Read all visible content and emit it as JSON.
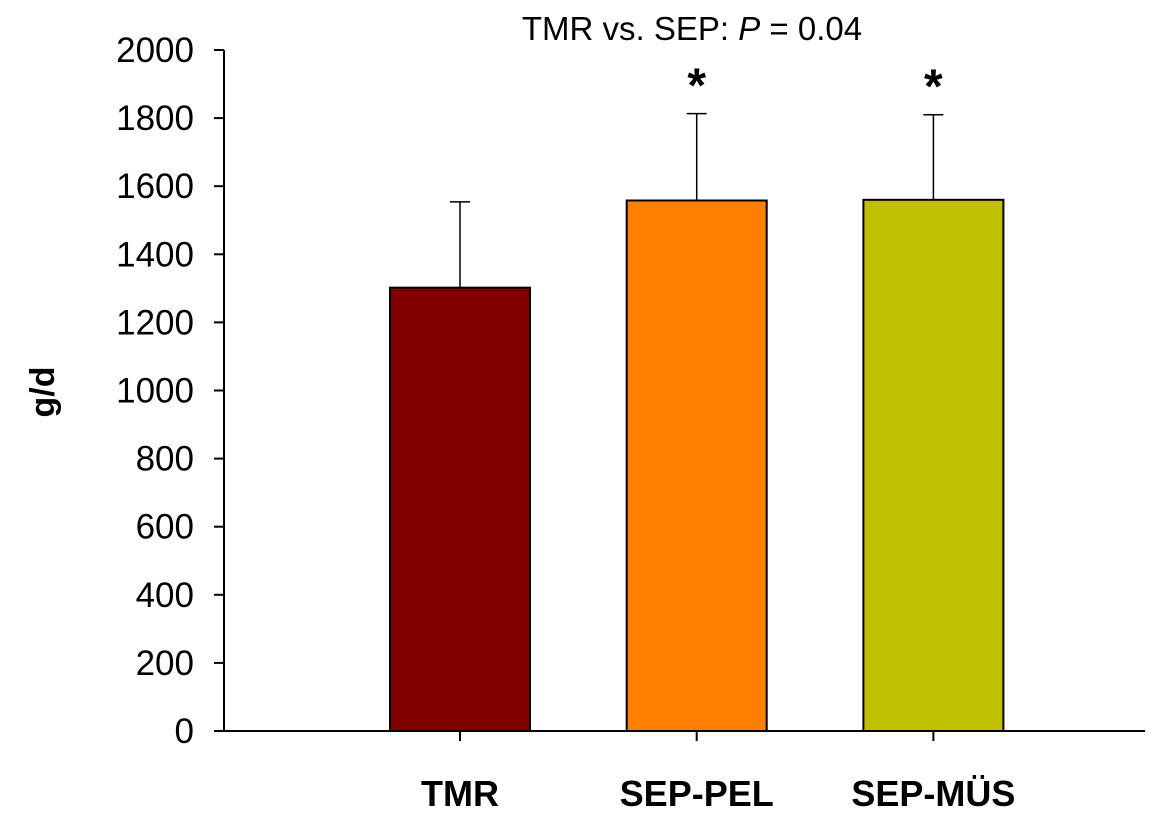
{
  "chart_data": {
    "type": "bar",
    "title": "",
    "annotation": {
      "prefix": "TMR vs. SEP: ",
      "p_symbol": "P",
      "suffix": " = 0.04"
    },
    "xlabel": "",
    "ylabel": "g/d",
    "ylim": [
      0,
      2000
    ],
    "yticks": [
      0,
      200,
      400,
      600,
      800,
      1000,
      1200,
      1400,
      1600,
      1800,
      2000
    ],
    "grid": false,
    "legend": "none",
    "categories": [
      "TMR",
      "SEP-PEL",
      "SEP-MÜS"
    ],
    "values": [
      1302,
      1558,
      1560
    ],
    "errors": [
      252,
      255,
      250
    ],
    "significance": [
      "",
      "*",
      "*"
    ],
    "colors": [
      "#800000",
      "#ff8000",
      "#c0c000"
    ]
  }
}
